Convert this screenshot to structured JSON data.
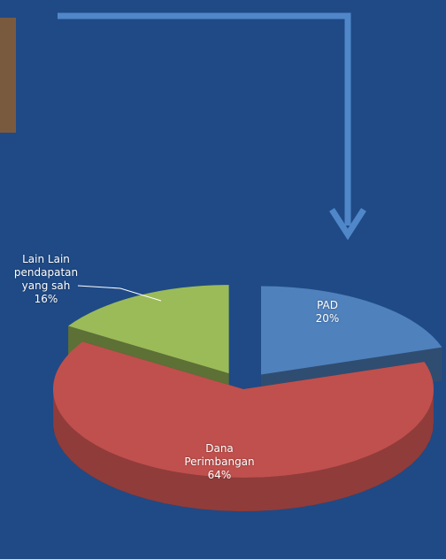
{
  "chart_data": {
    "type": "pie",
    "categories": [
      "PAD",
      "Dana Perimbangan",
      "Lain Lain pendapatan yang sah"
    ],
    "values": [
      20,
      64,
      16
    ],
    "value_labels": [
      "20%",
      "64%",
      "16%"
    ],
    "colors": [
      "#4f81bd",
      "#c0504d",
      "#9bbb59"
    ]
  }
}
